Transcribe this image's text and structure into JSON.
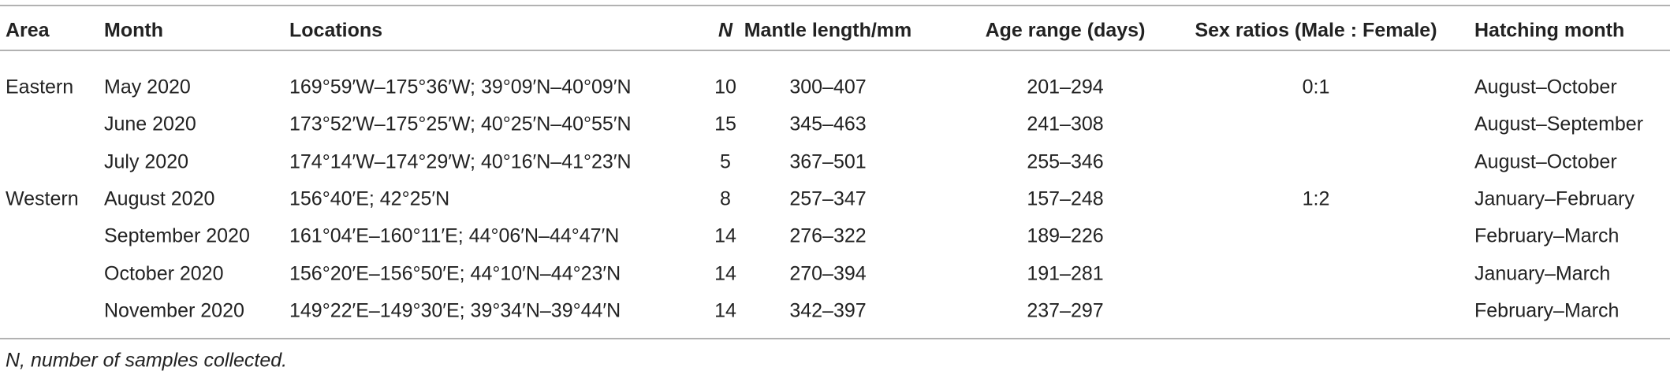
{
  "table": {
    "header": [
      "Area",
      "Month",
      "Locations",
      "N",
      "Mantle length/mm",
      "Age range (days)",
      "Sex ratios (Male : Female)",
      "Hatching month"
    ],
    "rows": [
      [
        "Eastern",
        "May 2020",
        "169°59′W–175°36′W; 39°09′N–40°09′N",
        10,
        "300–407",
        "201–294",
        "0:1",
        "August–October"
      ],
      [
        null,
        "June 2020",
        "173°52′W–175°25′W; 40°25′N–40°55′N",
        15,
        "345–463",
        "241–308",
        null,
        "August–September"
      ],
      [
        null,
        "July 2020",
        "174°14′W–174°29′W; 40°16′N–41°23′N",
        5,
        "367–501",
        "255–346",
        null,
        "August–October"
      ],
      [
        "Western",
        "August 2020",
        "156°40′E; 42°25′N",
        8,
        "257–347",
        "157–248",
        "1:2",
        "January–February"
      ],
      [
        null,
        "September 2020",
        "161°04′E–160°11′E; 44°06′N–44°47′N",
        14,
        "276–322",
        "189–226",
        null,
        "February–March"
      ],
      [
        null,
        "October 2020",
        "156°20′E–156°50′E; 44°10′N–44°23′N",
        14,
        "270–394",
        "191–281",
        null,
        "January–March"
      ],
      [
        null,
        "November 2020",
        "149°22′E–149°30′E; 39°34′N–39°44′N",
        14,
        "342–397",
        "237–297",
        null,
        "February–March"
      ]
    ],
    "footnote": "N, number of samples collected."
  }
}
